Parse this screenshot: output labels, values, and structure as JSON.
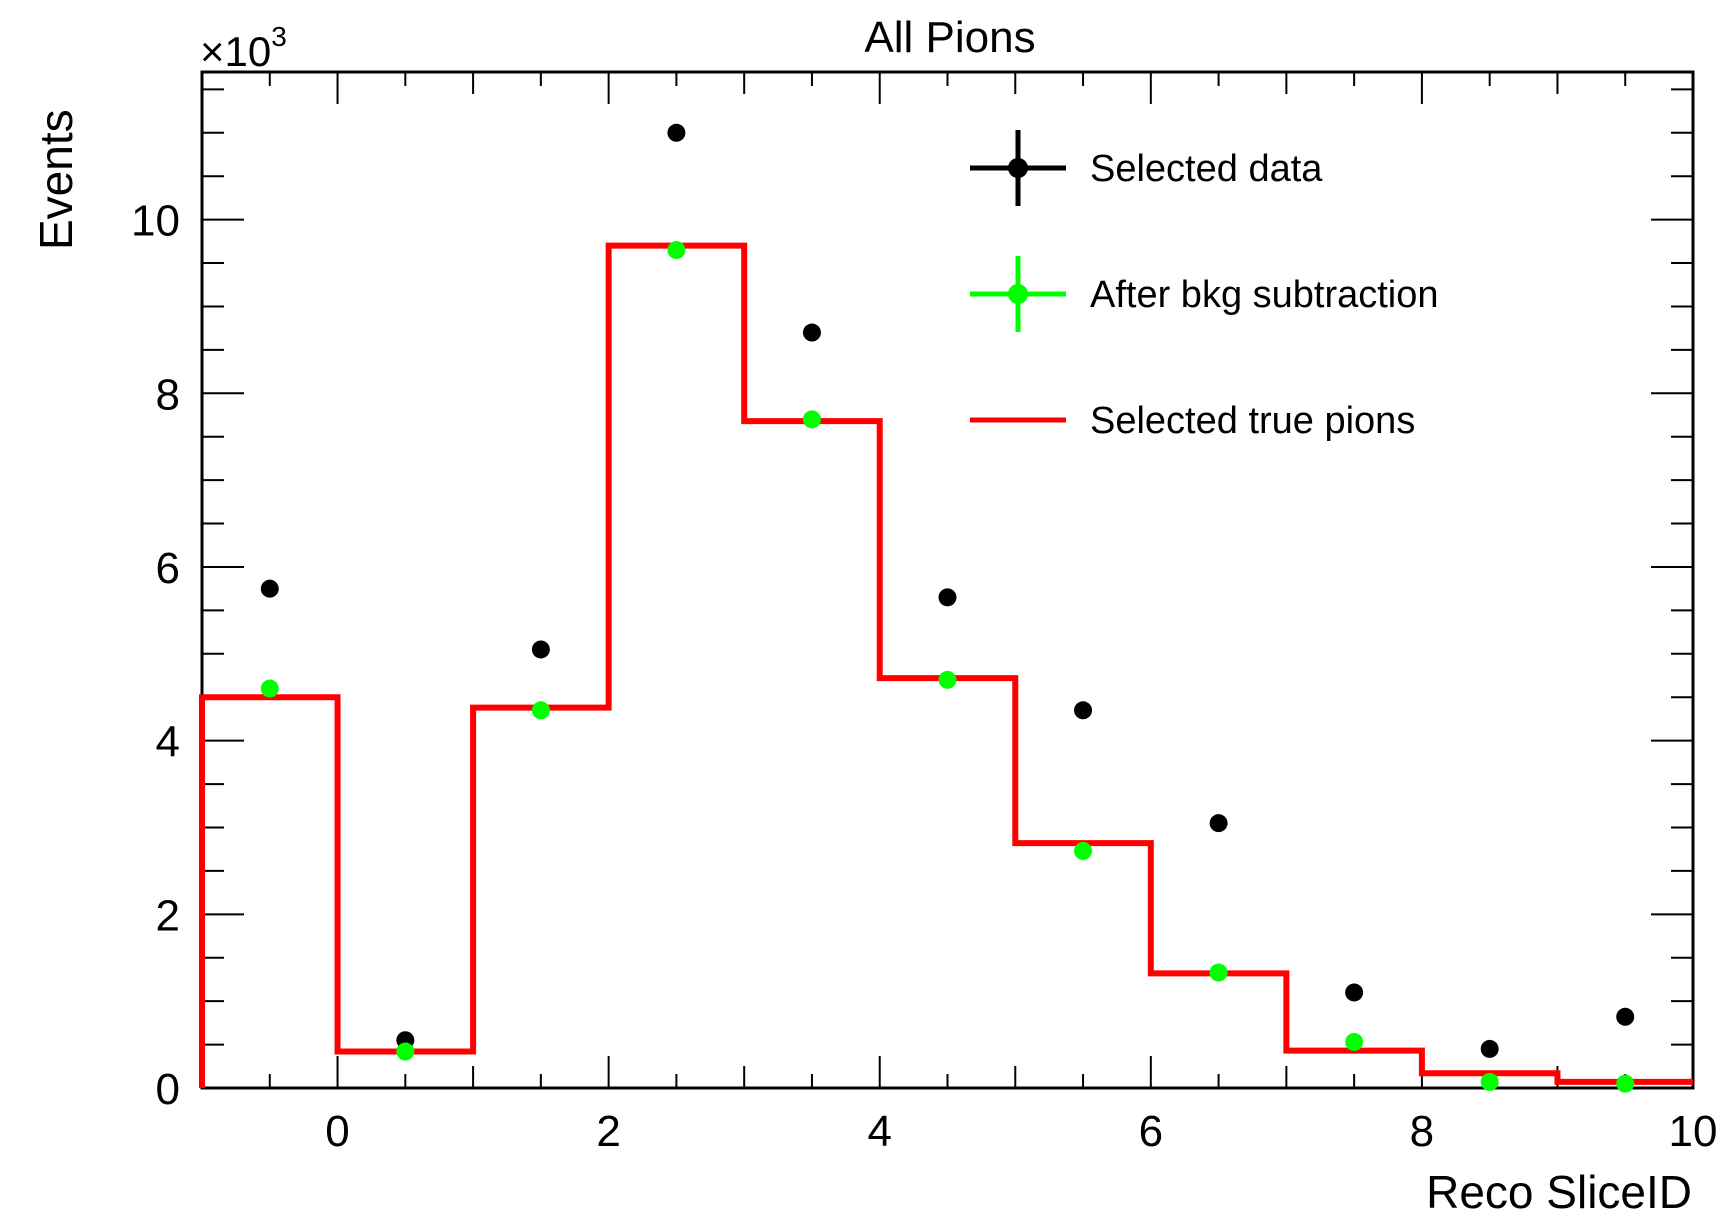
{
  "chart_data": {
    "type": "histogram",
    "title": "All Pions",
    "xlabel": "Reco SliceID",
    "ylabel": "Events",
    "y_multiplier": {
      "base": "×10",
      "exponent": "3"
    },
    "xlim": [
      -1,
      10
    ],
    "ylim": [
      0,
      11.7
    ],
    "x_tick_labels": [
      "0",
      "2",
      "4",
      "6",
      "8",
      "10"
    ],
    "x_tick_values": [
      0,
      2,
      4,
      6,
      8,
      10
    ],
    "y_tick_labels": [
      "0",
      "2",
      "4",
      "6",
      "8",
      "10"
    ],
    "y_tick_values": [
      0,
      2,
      4,
      6,
      8,
      10
    ],
    "grid": false,
    "legend_position": "top-right",
    "bin_edges": [
      -1,
      0,
      1,
      2,
      3,
      4,
      5,
      6,
      7,
      8,
      9,
      10
    ],
    "series": [
      {
        "name": "Selected data",
        "kind": "points",
        "color": "#000000",
        "x": [
          -0.5,
          0.5,
          1.5,
          2.5,
          3.5,
          4.5,
          5.5,
          6.5,
          7.5,
          8.5,
          9.5
        ],
        "values": [
          5.75,
          0.55,
          5.05,
          11.0,
          8.7,
          5.65,
          4.35,
          3.05,
          1.1,
          0.45,
          0.82
        ]
      },
      {
        "name": "After bkg subtraction",
        "kind": "points",
        "color": "#00ff00",
        "x": [
          -0.5,
          0.5,
          1.5,
          2.5,
          3.5,
          4.5,
          5.5,
          6.5,
          7.5,
          8.5,
          9.5
        ],
        "values": [
          4.6,
          0.42,
          4.35,
          9.65,
          7.7,
          4.7,
          2.73,
          1.33,
          0.53,
          0.07,
          0.05
        ]
      },
      {
        "name": "Selected true pions",
        "kind": "step",
        "color": "#ff0000",
        "values": [
          4.5,
          0.42,
          4.38,
          9.7,
          7.68,
          4.72,
          2.82,
          1.32,
          0.43,
          0.17,
          0.07
        ]
      }
    ]
  }
}
